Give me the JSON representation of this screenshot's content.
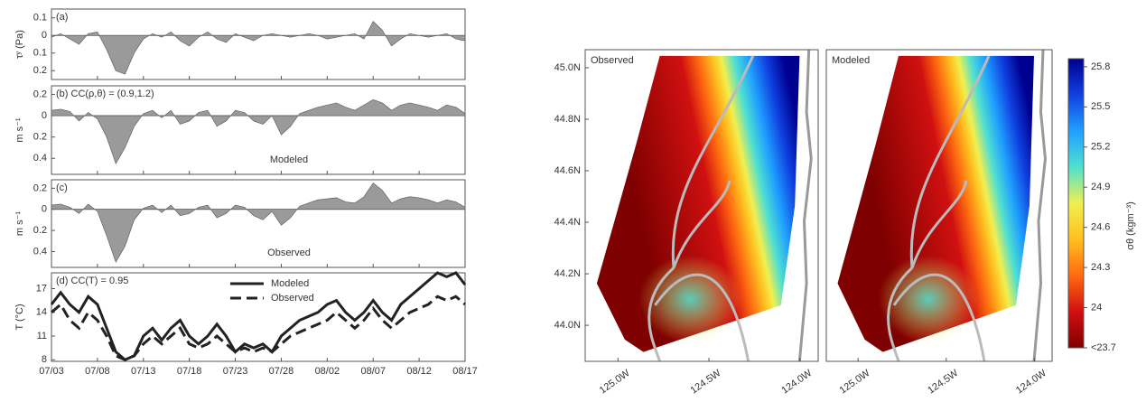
{
  "chart_data": [
    {
      "type": "area",
      "title": "(a)",
      "ylabel": "τʸ (Pa)",
      "x": [
        "07/03",
        "07/04",
        "07/05",
        "07/06",
        "07/07",
        "07/08",
        "07/09",
        "07/10",
        "07/11",
        "07/12",
        "07/13",
        "07/14",
        "07/15",
        "07/16",
        "07/17",
        "07/18",
        "07/19",
        "07/20",
        "07/21",
        "07/22",
        "07/23",
        "07/24",
        "07/25",
        "07/26",
        "07/27",
        "07/28",
        "07/29",
        "07/30",
        "07/31",
        "08/01",
        "08/02",
        "08/03",
        "08/04",
        "08/05",
        "08/06",
        "08/07",
        "08/08",
        "08/09",
        "08/10",
        "08/11",
        "08/12",
        "08/13",
        "08/14",
        "08/15",
        "08/16",
        "08/17"
      ],
      "values": [
        -0.01,
        0.01,
        -0.02,
        -0.05,
        0.01,
        0.02,
        -0.08,
        -0.2,
        -0.22,
        -0.1,
        -0.02,
        0.01,
        -0.01,
        0.02,
        -0.03,
        -0.06,
        -0.01,
        0.02,
        -0.02,
        -0.04,
        0.01,
        -0.01,
        -0.03,
        0,
        0.01,
        0,
        -0.01,
        0,
        0.01,
        0,
        -0.02,
        -0.01,
        0,
        0.01,
        -0.02,
        0.08,
        0.03,
        -0.06,
        -0.02,
        0.01,
        0,
        -0.01,
        0,
        0.01,
        -0.02,
        -0.03
      ],
      "color": "#9a9a9a",
      "ylim": [
        -0.25,
        0.15
      ],
      "yticks": [
        0.1,
        0,
        {
          "value": -0.1,
          "label": "0.1"
        },
        {
          "value": -0.2,
          "label": "0.2"
        }
      ]
    },
    {
      "type": "area",
      "title": "(b) CC(ρ,θ) = (0.9,1.2)",
      "ylabel": "m s⁻¹",
      "annotation": "Modeled",
      "x": [
        "07/03",
        "07/04",
        "07/05",
        "07/06",
        "07/07",
        "07/08",
        "07/09",
        "07/10",
        "07/11",
        "07/12",
        "07/13",
        "07/14",
        "07/15",
        "07/16",
        "07/17",
        "07/18",
        "07/19",
        "07/20",
        "07/21",
        "07/22",
        "07/23",
        "07/24",
        "07/25",
        "07/26",
        "07/27",
        "07/28",
        "07/29",
        "07/30",
        "07/31",
        "08/01",
        "08/02",
        "08/03",
        "08/04",
        "08/05",
        "08/06",
        "08/07",
        "08/08",
        "08/09",
        "08/10",
        "08/11",
        "08/12",
        "08/13",
        "08/14",
        "08/15",
        "08/16",
        "08/17"
      ],
      "values": [
        0.05,
        0.06,
        0.04,
        -0.05,
        0.03,
        -0.03,
        -0.2,
        -0.45,
        -0.3,
        -0.1,
        0.02,
        0.05,
        -0.02,
        0.05,
        -0.08,
        -0.05,
        0.03,
        0.05,
        -0.1,
        -0.05,
        0.05,
        0.03,
        -0.05,
        -0.08,
        0,
        -0.18,
        -0.1,
        0.02,
        0.05,
        0.08,
        0.1,
        0.12,
        0.08,
        0.05,
        0.1,
        0.15,
        0.12,
        0.05,
        0.1,
        0.12,
        0.1,
        0.08,
        0.05,
        0.1,
        0.08,
        0.02
      ],
      "color": "#9a9a9a",
      "ylim": [
        -0.55,
        0.28
      ],
      "yticks": [
        0.2,
        0,
        {
          "value": -0.2,
          "label": "0.2"
        },
        {
          "value": -0.4,
          "label": "0.4"
        }
      ]
    },
    {
      "type": "area",
      "title": "(c)",
      "ylabel": "m s⁻¹",
      "annotation": "Observed",
      "x": [
        "07/03",
        "07/04",
        "07/05",
        "07/06",
        "07/07",
        "07/08",
        "07/09",
        "07/10",
        "07/11",
        "07/12",
        "07/13",
        "07/14",
        "07/15",
        "07/16",
        "07/17",
        "07/18",
        "07/19",
        "07/20",
        "07/21",
        "07/22",
        "07/23",
        "07/24",
        "07/25",
        "07/26",
        "07/27",
        "07/28",
        "07/29",
        "07/30",
        "07/31",
        "08/01",
        "08/02",
        "08/03",
        "08/04",
        "08/05",
        "08/06",
        "08/07",
        "08/08",
        "08/09",
        "08/10",
        "08/11",
        "08/12",
        "08/13",
        "08/14",
        "08/15",
        "08/16",
        "08/17"
      ],
      "values": [
        0.04,
        0.05,
        0.02,
        -0.04,
        0.05,
        -0.02,
        -0.25,
        -0.5,
        -0.35,
        -0.1,
        0.01,
        0.04,
        -0.03,
        0.04,
        -0.06,
        -0.04,
        0.02,
        0.04,
        -0.08,
        -0.04,
        0.04,
        0.02,
        -0.06,
        -0.1,
        -0.02,
        -0.15,
        -0.08,
        0.03,
        0.06,
        0.09,
        0.1,
        0.11,
        0.07,
        0.06,
        0.12,
        0.25,
        0.18,
        0.06,
        0.1,
        0.12,
        0.11,
        0.09,
        0.06,
        0.09,
        0.07,
        0.02
      ],
      "color": "#9a9a9a",
      "ylim": [
        -0.55,
        0.28
      ],
      "yticks": [
        0.2,
        0,
        {
          "value": -0.2,
          "label": "0.2"
        },
        {
          "value": -0.4,
          "label": "0.4"
        }
      ]
    },
    {
      "type": "line",
      "title": "(d) CC(T) = 0.95",
      "ylabel": "T (°C)",
      "x": [
        "07/03",
        "07/04",
        "07/05",
        "07/06",
        "07/07",
        "07/08",
        "07/09",
        "07/10",
        "07/11",
        "07/12",
        "07/13",
        "07/14",
        "07/15",
        "07/16",
        "07/17",
        "07/18",
        "07/19",
        "07/20",
        "07/21",
        "07/22",
        "07/23",
        "07/24",
        "07/25",
        "07/26",
        "07/27",
        "07/28",
        "07/29",
        "07/30",
        "07/31",
        "08/01",
        "08/02",
        "08/03",
        "08/04",
        "08/05",
        "08/06",
        "08/07",
        "08/08",
        "08/09",
        "08/10",
        "08/11",
        "08/12",
        "08/13",
        "08/14",
        "08/15",
        "08/16",
        "08/17"
      ],
      "series": [
        {
          "name": "Modeled",
          "color": "#222222",
          "dash": "solid",
          "values": [
            15,
            16.5,
            15,
            14,
            16,
            15,
            12,
            9,
            8,
            8.5,
            11,
            12,
            10.5,
            12,
            13,
            11,
            10,
            11,
            12.5,
            11,
            9,
            10,
            9.5,
            10,
            9,
            11,
            12,
            13,
            13.5,
            14,
            15,
            15.5,
            14,
            13,
            14,
            15.5,
            14,
            13,
            15,
            16,
            17,
            18,
            19,
            18.5,
            19,
            17.5
          ]
        },
        {
          "name": "Observed",
          "color": "#222222",
          "dash": "dashed",
          "values": [
            14,
            15,
            13,
            12,
            14,
            13,
            11,
            8.5,
            8,
            8.5,
            10,
            11,
            10,
            11,
            12,
            10,
            9.5,
            10,
            11,
            10,
            9,
            9.5,
            9,
            9.5,
            9,
            10,
            11,
            11.5,
            12,
            12.5,
            13,
            14,
            13,
            12,
            13,
            14.5,
            13,
            12,
            13,
            14,
            14.5,
            15,
            16,
            15.5,
            16,
            15
          ]
        }
      ],
      "ylim": [
        7.8,
        19
      ],
      "yticks": [
        8,
        11,
        14,
        17
      ],
      "xticks": [
        "07/03",
        "07/08",
        "07/13",
        "07/18",
        "07/23",
        "07/28",
        "08/02",
        "08/07",
        "08/12",
        "08/17"
      ]
    },
    {
      "type": "map",
      "title": "Observed",
      "xlim": [
        -125.18,
        -123.9
      ],
      "ylim": [
        43.86,
        45.07
      ],
      "xticks": [
        {
          "value": -125,
          "label": "125.0W"
        },
        {
          "value": -124.5,
          "label": "124.5W"
        },
        {
          "value": -124,
          "label": "124.0W"
        }
      ],
      "yticks": [
        {
          "value": 45,
          "label": "45.0N"
        },
        {
          "value": 44.8,
          "label": "44.8N"
        },
        {
          "value": 44.6,
          "label": "44.6N"
        },
        {
          "value": 44.4,
          "label": "44.4N"
        },
        {
          "value": 44.2,
          "label": "44.2N"
        },
        {
          "value": 44,
          "label": "44.0N"
        }
      ]
    },
    {
      "type": "map",
      "title": "Modeled",
      "xlim": [
        -125.18,
        -123.9
      ],
      "ylim": [
        43.86,
        45.07
      ],
      "xticks": [
        {
          "value": -125,
          "label": "125.0W"
        },
        {
          "value": -124.5,
          "label": "124.5W"
        },
        {
          "value": -124,
          "label": "124.0W"
        }
      ]
    },
    {
      "type": "colorbar",
      "label": "σθ (kgm⁻³)",
      "ylim": [
        23.7,
        25.86
      ],
      "colors": [
        "#7f0000",
        "#d01010",
        "#ff6a10",
        "#ffc020",
        "#f0f050",
        "#50e0d0",
        "#20a0ff",
        "#1040e0",
        "#000090"
      ],
      "yticks": [
        {
          "value": 23.7,
          "label": "<23.7"
        },
        24,
        24.3,
        24.6,
        24.9,
        25.2,
        25.5,
        25.8
      ]
    }
  ]
}
